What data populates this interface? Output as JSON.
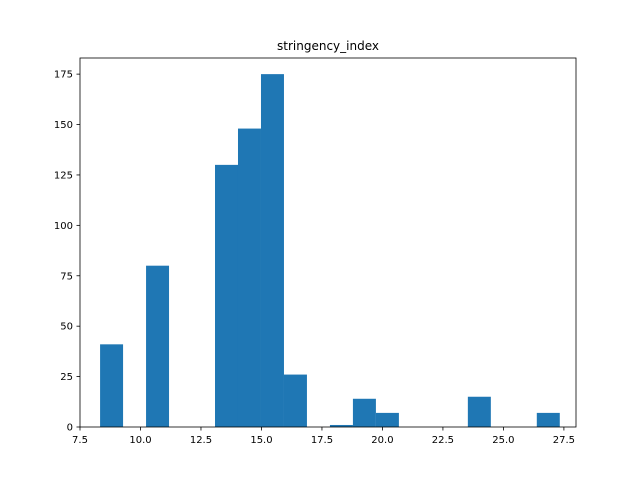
{
  "chart_data": {
    "type": "bar",
    "subtype": "histogram",
    "title": "stringency_index",
    "xlabel": "",
    "ylabel": "",
    "xlim": [
      7.5,
      28.0
    ],
    "ylim": [
      0,
      183
    ],
    "x_ticks": [
      7.5,
      10.0,
      12.5,
      15.0,
      17.5,
      20.0,
      22.5,
      25.0,
      27.5
    ],
    "x_tick_labels": [
      "7.5",
      "10.0",
      "12.5",
      "15.0",
      "17.5",
      "20.0",
      "22.5",
      "25.0",
      "27.5"
    ],
    "y_ticks": [
      0,
      25,
      50,
      75,
      100,
      125,
      150,
      175
    ],
    "y_tick_labels": [
      "0",
      "25",
      "50",
      "75",
      "100",
      "125",
      "150",
      "175"
    ],
    "bar_color": "#1f77b4",
    "grid": false,
    "bins": [
      {
        "x0": 8.33,
        "x1": 9.28,
        "count": 41
      },
      {
        "x0": 9.28,
        "x1": 10.23,
        "count": 0
      },
      {
        "x0": 10.23,
        "x1": 11.18,
        "count": 80
      },
      {
        "x0": 11.18,
        "x1": 12.13,
        "count": 0
      },
      {
        "x0": 12.13,
        "x1": 13.08,
        "count": 0
      },
      {
        "x0": 13.08,
        "x1": 14.03,
        "count": 130
      },
      {
        "x0": 14.03,
        "x1": 14.98,
        "count": 148
      },
      {
        "x0": 14.98,
        "x1": 15.93,
        "count": 175
      },
      {
        "x0": 15.93,
        "x1": 16.88,
        "count": 26
      },
      {
        "x0": 16.88,
        "x1": 17.83,
        "count": 0
      },
      {
        "x0": 17.83,
        "x1": 18.78,
        "count": 1
      },
      {
        "x0": 18.78,
        "x1": 19.73,
        "count": 14
      },
      {
        "x0": 19.73,
        "x1": 20.68,
        "count": 7
      },
      {
        "x0": 20.68,
        "x1": 21.63,
        "count": 0
      },
      {
        "x0": 21.63,
        "x1": 22.58,
        "count": 0
      },
      {
        "x0": 22.58,
        "x1": 23.53,
        "count": 0
      },
      {
        "x0": 23.53,
        "x1": 24.48,
        "count": 15
      },
      {
        "x0": 24.48,
        "x1": 25.43,
        "count": 0
      },
      {
        "x0": 25.43,
        "x1": 26.38,
        "count": 0
      },
      {
        "x0": 26.38,
        "x1": 27.33,
        "count": 7
      }
    ]
  }
}
